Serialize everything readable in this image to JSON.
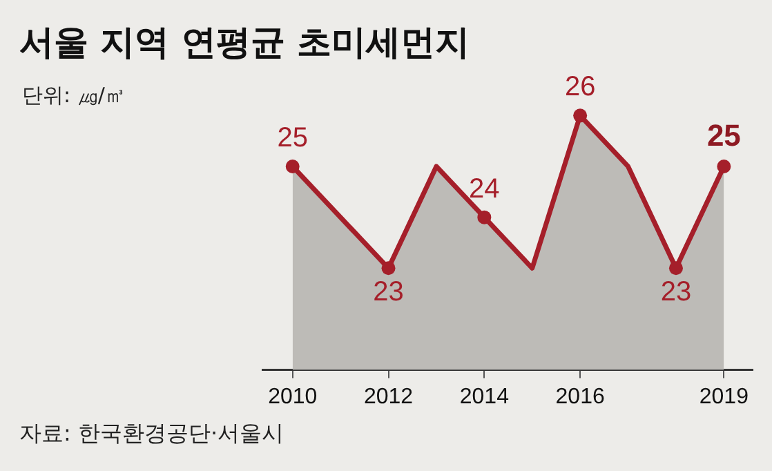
{
  "chart_data": {
    "type": "area",
    "title": "서울 지역 연평균 초미세먼지",
    "subtitle": "단위: ㎍/㎥",
    "annotations": [
      "자료: 한국환경공단·서울시"
    ],
    "series": [
      {
        "color": "#a51f2a",
        "x": [
          2010,
          2012,
          2013,
          2014,
          2015,
          2016,
          2017,
          2018,
          2019
        ],
        "values": [
          25,
          23,
          25,
          24,
          23,
          26,
          25,
          23,
          25
        ],
        "value_labels": [
          "25",
          "23",
          null,
          "24",
          null,
          "26",
          null,
          "23",
          "25"
        ]
      }
    ],
    "xlim": [
      2009.37,
      2019.6
    ],
    "xticks": [
      2010,
      2012,
      2014,
      2016,
      2019
    ],
    "tick_labels": "x",
    "grid": false,
    "legend": false,
    "marker": "circle"
  }
}
